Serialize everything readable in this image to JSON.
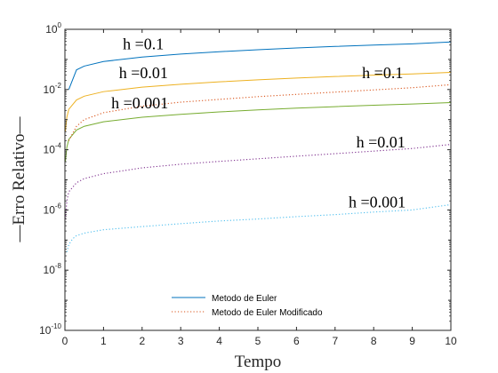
{
  "chart_data": {
    "type": "line",
    "xlabel": "Tempo",
    "ylabel": "—Erro Relativo—",
    "xlim": [
      0,
      10
    ],
    "ylim": [
      1e-10,
      1
    ],
    "yscale": "log",
    "grid": false,
    "legend_placement": "bottom-center",
    "x_ticks": [
      "0",
      "1",
      "2",
      "3",
      "4",
      "5",
      "6",
      "7",
      "8",
      "9",
      "10"
    ],
    "y_ticks": [
      {
        "base": "10",
        "exp": "0",
        "value": 1
      },
      {
        "base": "10",
        "exp": "-2",
        "value": 0.01
      },
      {
        "base": "10",
        "exp": "-4",
        "value": 0.0001
      },
      {
        "base": "10",
        "exp": "-6",
        "value": 1e-06
      },
      {
        "base": "10",
        "exp": "-8",
        "value": 1e-08
      },
      {
        "base": "10",
        "exp": "-10",
        "value": 1e-10
      }
    ],
    "series": [
      {
        "name": "Metodo de Euler",
        "method": "euler",
        "h": 0.1,
        "color": "#0072BD",
        "style": "solid",
        "x": [
          0.1,
          0.3,
          0.5,
          1,
          2,
          3,
          4,
          5,
          6,
          7,
          8,
          9,
          10
        ],
        "y": [
          0.01,
          0.045,
          0.06,
          0.085,
          0.12,
          0.15,
          0.18,
          0.21,
          0.24,
          0.27,
          0.3,
          0.33,
          0.38
        ]
      },
      {
        "method": "euler",
        "h": 0.01,
        "color": "#EDB120",
        "style": "solid",
        "x": [
          0.01,
          0.05,
          0.1,
          0.3,
          0.5,
          1,
          2,
          3,
          4,
          5,
          6,
          7,
          8,
          9,
          10
        ],
        "y": [
          0.0004,
          0.0012,
          0.0022,
          0.0045,
          0.006,
          0.0085,
          0.012,
          0.015,
          0.018,
          0.021,
          0.024,
          0.027,
          0.03,
          0.033,
          0.037
        ]
      },
      {
        "method": "euler",
        "h": 0.001,
        "color": "#77AC30",
        "style": "solid",
        "x": [
          0.01,
          0.05,
          0.1,
          0.3,
          0.5,
          1,
          2,
          3,
          4,
          5,
          6,
          7,
          8,
          9,
          10
        ],
        "y": [
          4e-05,
          0.00012,
          0.00022,
          0.00045,
          0.0006,
          0.00085,
          0.0012,
          0.0015,
          0.0018,
          0.0021,
          0.0024,
          0.0027,
          0.003,
          0.0033,
          0.0037
        ]
      },
      {
        "name": "Metodo de Euler Modificado",
        "method": "modified",
        "h": 0.1,
        "color": "#D95319",
        "style": "dotted",
        "x": [
          0.1,
          0.3,
          0.5,
          1,
          2,
          3,
          4,
          5,
          6,
          7,
          8,
          9,
          10
        ],
        "y": [
          0.0002,
          0.0006,
          0.001,
          0.0017,
          0.0028,
          0.0038,
          0.0047,
          0.0058,
          0.0069,
          0.0082,
          0.0097,
          0.0115,
          0.0145
        ]
      },
      {
        "method": "modified",
        "h": 0.01,
        "color": "#7E2F8E",
        "style": "dotted",
        "x": [
          0.01,
          0.05,
          0.1,
          0.3,
          0.5,
          1,
          2,
          3,
          4,
          5,
          6,
          7,
          8,
          9,
          10
        ],
        "y": [
          5e-07,
          2e-06,
          4e-06,
          8e-06,
          1.1e-05,
          1.6e-05,
          2.5e-05,
          3.3e-05,
          4.1e-05,
          5e-05,
          6.1e-05,
          7.4e-05,
          9e-05,
          0.00011,
          0.00015
        ]
      },
      {
        "method": "modified",
        "h": 0.001,
        "color": "#4DBEEE",
        "style": "dotted",
        "x": [
          0.05,
          0.1,
          0.2,
          0.3,
          0.5,
          1,
          2,
          3,
          4,
          5,
          6,
          7,
          8,
          9,
          10
        ],
        "y": [
          4e-08,
          7e-08,
          1.1e-07,
          1.4e-07,
          1.7e-07,
          2.2e-07,
          2.8e-07,
          3.5e-07,
          4.3e-07,
          5e-07,
          6e-07,
          7e-07,
          8.5e-07,
          1e-06,
          1.5e-06
        ]
      }
    ],
    "annotations": [
      {
        "text": "h =0.1",
        "x": 1.5,
        "y": 0.22
      },
      {
        "text": "h =0.01",
        "x": 1.4,
        "y": 0.024
      },
      {
        "text": "h =0.001",
        "x": 1.2,
        "y": 0.0024
      },
      {
        "text": "h =0.1",
        "x": 7.7,
        "y": 0.024
      },
      {
        "text": "h =0.01",
        "x": 7.55,
        "y": 0.00012
      },
      {
        "text": "h =0.001",
        "x": 7.35,
        "y": 1.2e-06
      }
    ]
  }
}
